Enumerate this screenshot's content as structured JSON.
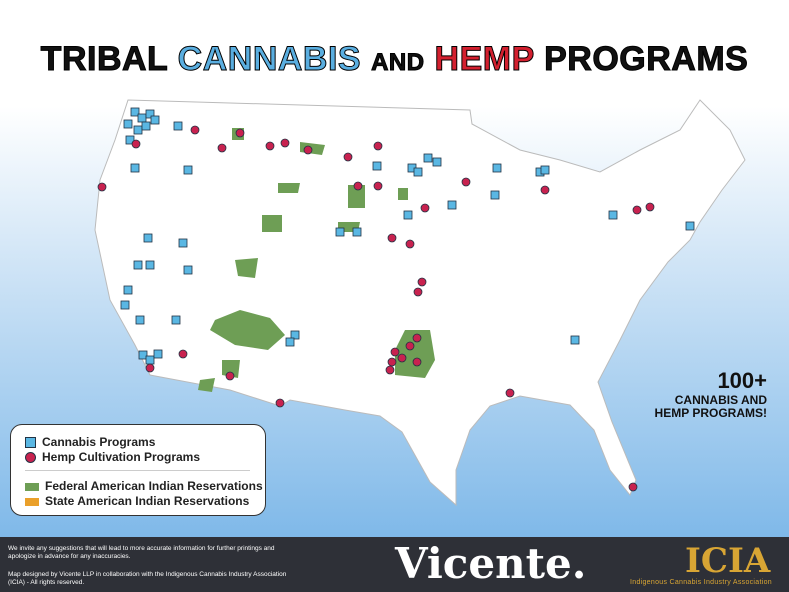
{
  "title": {
    "part1": "TRIBAL",
    "part2": "CANNABIS",
    "part3": "AND",
    "part4": "HEMP",
    "part5": "PROGRAMS"
  },
  "legend": {
    "items": [
      "Cannabis Programs",
      "Hemp Cultivation Programs",
      "Federal American Indian Reservations",
      "State American Indian Reservations"
    ]
  },
  "callout": {
    "number": "100+",
    "lines": [
      "CANNABIS AND",
      "HEMP PROGRAMS!"
    ]
  },
  "footer": {
    "note1": "We invite any suggestions that will lead to more accurate information for further printings and apologize in advance for any inaccuracies.",
    "note2": "Map designed by Vicente LLP in collaboration with the Indigenous Cannabis Industry Association (ICIA) - All rights reserved.",
    "vicente": "Vicente.",
    "icia": "ICIA",
    "icia_full": "Indigenous Cannabis Industry Association"
  }
}
